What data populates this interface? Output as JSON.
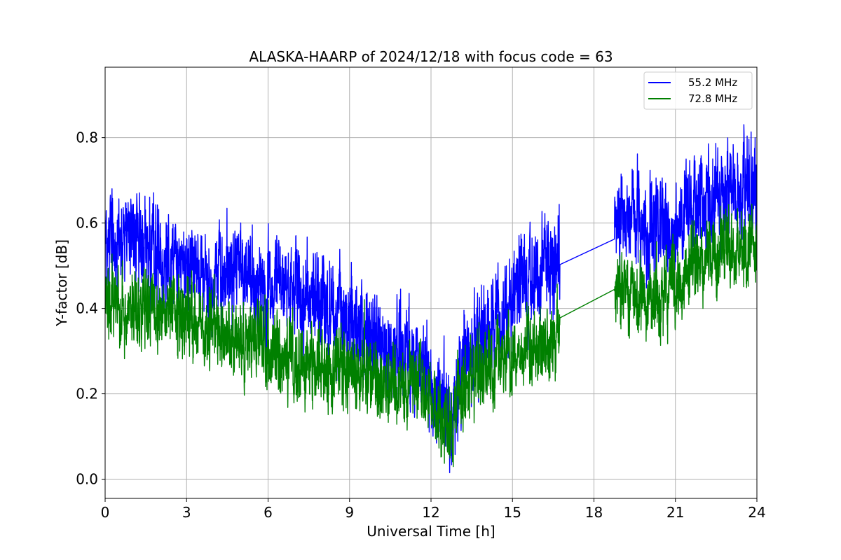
{
  "chart_data": {
    "type": "line",
    "title": "ALASKA-HAARP of 2024/12/18 with focus code = 63",
    "xlabel": "Universal Time [h]",
    "ylabel": "Y-factor [dB]",
    "xlim": [
      0,
      24
    ],
    "ylim": [
      -0.045,
      0.965
    ],
    "xticks": [
      0,
      3,
      6,
      9,
      12,
      15,
      18,
      21,
      24
    ],
    "xtick_labels": [
      "0",
      "3",
      "6",
      "9",
      "12",
      "15",
      "18",
      "21",
      "24"
    ],
    "yticks": [
      0.0,
      0.2,
      0.4,
      0.6,
      0.8
    ],
    "ytick_labels": [
      "0.0",
      "0.2",
      "0.4",
      "0.6",
      "0.8"
    ],
    "grid": true,
    "legend_position": "top-right",
    "gap": [
      16.75,
      18.75
    ],
    "series": [
      {
        "name": "55.2 MHz",
        "color": "#0000ff",
        "x": [
          0,
          0.5,
          1,
          1.5,
          2,
          2.5,
          3,
          3.5,
          4,
          4.5,
          5,
          5.5,
          6,
          6.5,
          7,
          7.5,
          8,
          8.5,
          9,
          9.5,
          10,
          10.5,
          11,
          11.5,
          12,
          12.5,
          12.75,
          13,
          13.5,
          14,
          14.5,
          15,
          15.5,
          16,
          16.5,
          16.75,
          18.75,
          19,
          19.5,
          20,
          20.5,
          21,
          21.5,
          22,
          22.5,
          23,
          23.5,
          24
        ],
        "y": [
          0.57,
          0.56,
          0.56,
          0.55,
          0.53,
          0.52,
          0.5,
          0.48,
          0.48,
          0.48,
          0.48,
          0.47,
          0.46,
          0.45,
          0.44,
          0.43,
          0.41,
          0.39,
          0.37,
          0.34,
          0.32,
          0.31,
          0.3,
          0.28,
          0.22,
          0.16,
          0.1,
          0.23,
          0.3,
          0.34,
          0.38,
          0.42,
          0.46,
          0.48,
          0.5,
          0.53,
          0.62,
          0.62,
          0.61,
          0.58,
          0.58,
          0.6,
          0.62,
          0.64,
          0.66,
          0.66,
          0.67,
          0.68
        ],
        "noise": 0.07
      },
      {
        "name": "72.8 MHz",
        "color": "#008000",
        "x": [
          0,
          0.5,
          1,
          1.5,
          2,
          2.5,
          3,
          3.5,
          4,
          4.5,
          5,
          5.5,
          6,
          6.5,
          7,
          7.5,
          8,
          8.5,
          9,
          9.5,
          10,
          10.5,
          11,
          11.5,
          12,
          12.5,
          12.75,
          13,
          13.5,
          14,
          14.5,
          15,
          15.5,
          16,
          16.5,
          16.75,
          18.75,
          19,
          19.5,
          20,
          20.5,
          21,
          21.5,
          22,
          22.5,
          23,
          23.5,
          24
        ],
        "y": [
          0.42,
          0.41,
          0.41,
          0.4,
          0.39,
          0.38,
          0.37,
          0.36,
          0.35,
          0.33,
          0.32,
          0.31,
          0.3,
          0.29,
          0.28,
          0.27,
          0.27,
          0.26,
          0.25,
          0.24,
          0.23,
          0.23,
          0.22,
          0.22,
          0.18,
          0.14,
          0.1,
          0.19,
          0.24,
          0.26,
          0.28,
          0.29,
          0.31,
          0.32,
          0.33,
          0.35,
          0.44,
          0.44,
          0.43,
          0.42,
          0.44,
          0.47,
          0.49,
          0.5,
          0.52,
          0.53,
          0.54,
          0.55
        ],
        "noise": 0.055
      }
    ]
  }
}
